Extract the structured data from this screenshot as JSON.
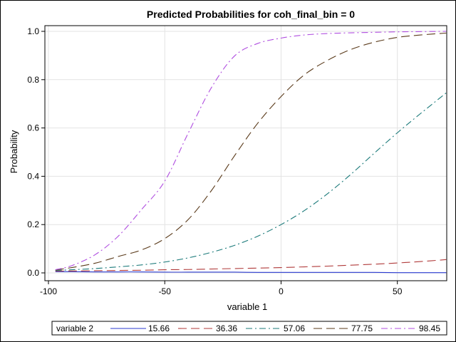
{
  "chart_data": {
    "type": "line",
    "title": "Predicted Probabilities for coh_final_bin = 0",
    "xlabel": "variable 1",
    "ylabel": "Probability",
    "xlim": [
      -100,
      70
    ],
    "ylim": [
      0,
      1
    ],
    "x_ticks": [
      -100,
      -50,
      0,
      50
    ],
    "x_tick_labels": [
      "-100",
      "-50",
      "0",
      "50"
    ],
    "y_ticks": [
      0,
      0.2,
      0.4,
      0.6,
      0.8,
      1.0
    ],
    "y_tick_labels": [
      "0.0",
      "0.2",
      "0.4",
      "0.6",
      "0.8",
      "1.0"
    ],
    "grid": true,
    "legend": {
      "title": "variable 2",
      "position": "bottom"
    },
    "x": [
      -97,
      -90,
      -80,
      -70,
      -60,
      -50,
      -40,
      -30,
      -20,
      -10,
      0,
      10,
      20,
      30,
      40,
      50,
      60,
      71
    ],
    "series": [
      {
        "name": "15.66",
        "color": "#2a3ad0",
        "dash": "solid",
        "values": [
          0.005,
          0.005,
          0.004,
          0.004,
          0.004,
          0.003,
          0.003,
          0.003,
          0.003,
          0.002,
          0.002,
          0.002,
          0.002,
          0.002,
          0.002,
          0.001,
          0.001,
          0.001
        ]
      },
      {
        "name": "36.36",
        "color": "#b03a3a",
        "dash": "long-dash",
        "values": [
          0.008,
          0.008,
          0.009,
          0.01,
          0.011,
          0.013,
          0.014,
          0.016,
          0.018,
          0.02,
          0.022,
          0.025,
          0.028,
          0.032,
          0.036,
          0.041,
          0.047,
          0.055
        ]
      },
      {
        "name": "57.06",
        "color": "#1b7a7a",
        "dash": "dash-dot",
        "values": [
          0.01,
          0.013,
          0.018,
          0.025,
          0.033,
          0.045,
          0.062,
          0.085,
          0.114,
          0.152,
          0.2,
          0.258,
          0.328,
          0.408,
          0.495,
          0.58,
          0.66,
          0.745
        ]
      },
      {
        "name": "77.75",
        "color": "#5a3a1a",
        "dash": "long-dash",
        "values": [
          0.012,
          0.022,
          0.04,
          0.068,
          0.095,
          0.142,
          0.22,
          0.34,
          0.485,
          0.62,
          0.73,
          0.82,
          0.88,
          0.925,
          0.955,
          0.975,
          0.985,
          0.993
        ]
      },
      {
        "name": "98.45",
        "color": "#b04ee0",
        "dash": "dash-dot",
        "values": [
          0.013,
          0.03,
          0.075,
          0.152,
          0.262,
          0.38,
          0.577,
          0.766,
          0.898,
          0.95,
          0.972,
          0.985,
          0.991,
          0.994,
          0.996,
          0.998,
          0.999,
          1.0
        ]
      }
    ]
  }
}
